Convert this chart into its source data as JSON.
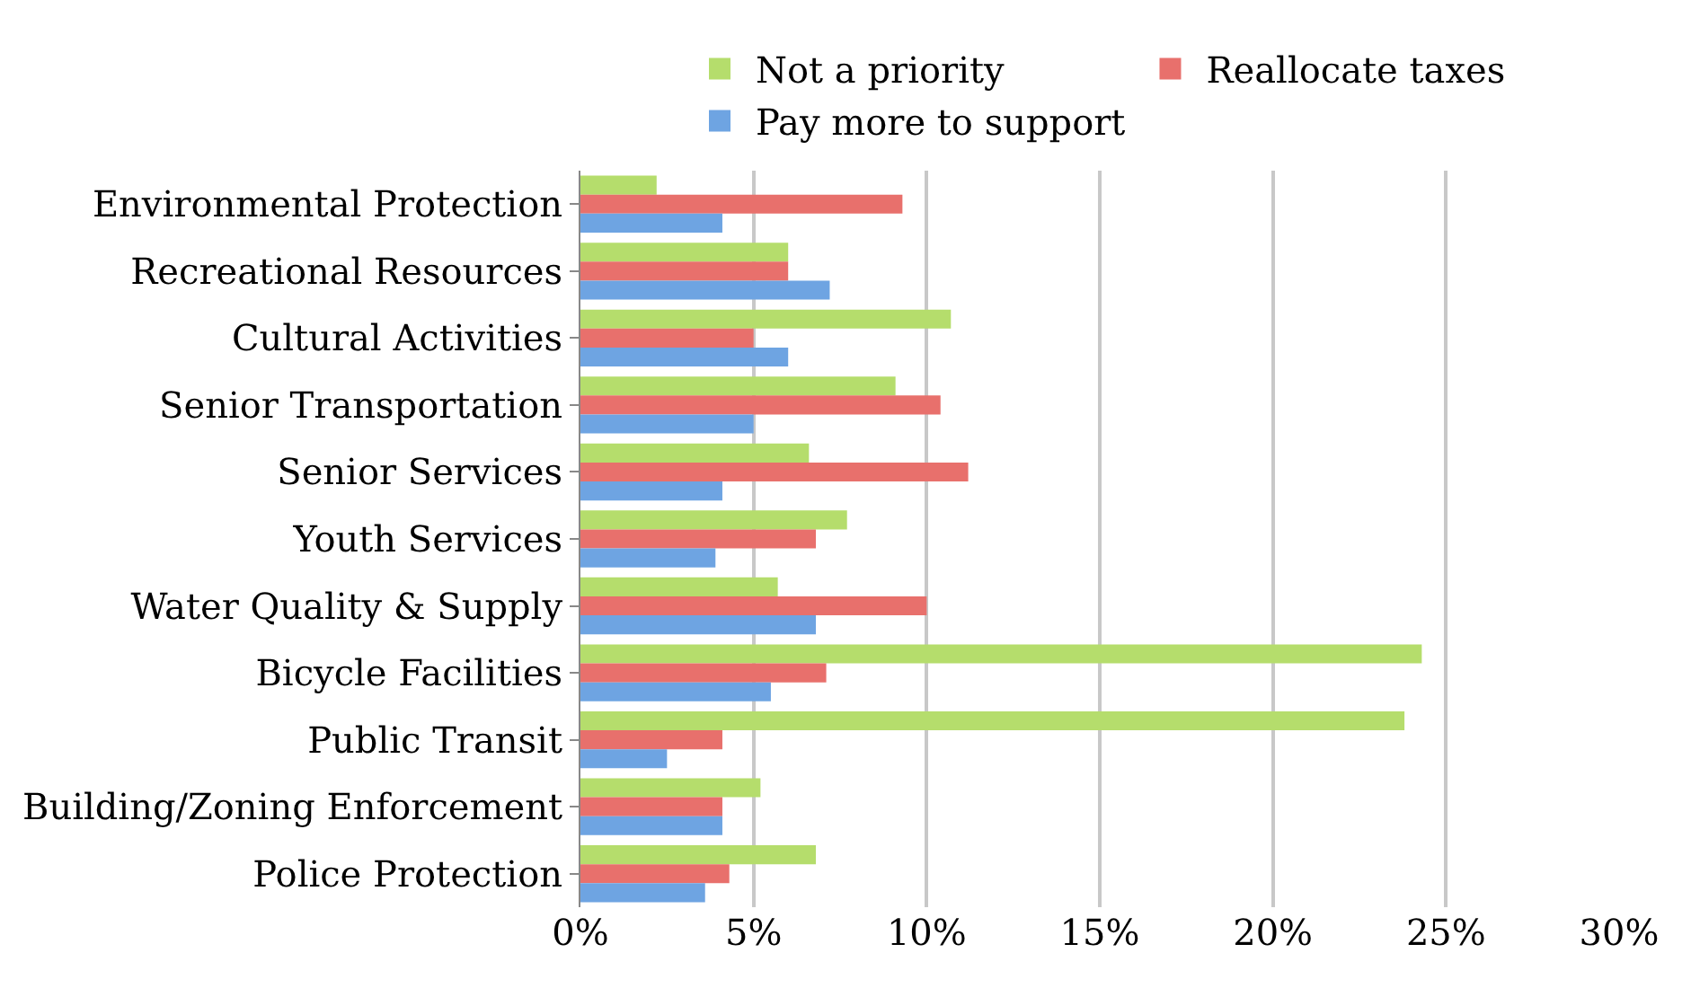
{
  "chart_data": {
    "type": "bar",
    "orientation": "horizontal",
    "categories": [
      "Environmental Protection",
      "Recreational Resources",
      "Cultural Activities",
      "Senior Transportation",
      "Senior Services",
      "Youth Services",
      "Water Quality & Supply",
      "Bicycle Facilities",
      "Public Transit",
      "Building/Zoning Enforcement",
      "Police Protection"
    ],
    "series": [
      {
        "name": "Not a priority",
        "color": "#b5dd6c",
        "values": [
          2.2,
          6.0,
          10.7,
          9.1,
          6.6,
          7.7,
          5.7,
          24.3,
          23.8,
          5.2,
          6.8
        ]
      },
      {
        "name": "Reallocate taxes",
        "color": "#e8706c",
        "values": [
          9.3,
          6.0,
          5.0,
          10.4,
          11.2,
          6.8,
          10.0,
          7.1,
          4.1,
          4.1,
          4.3
        ]
      },
      {
        "name": "Pay more to support",
        "color": "#6ea4e2",
        "values": [
          4.1,
          7.2,
          6.0,
          5.0,
          4.1,
          3.9,
          6.8,
          5.5,
          2.5,
          4.1,
          3.6
        ]
      }
    ],
    "xlim": [
      0,
      30
    ],
    "xticks": [
      {
        "value": 0,
        "label": "0%"
      },
      {
        "value": 5,
        "label": "5%"
      },
      {
        "value": 10,
        "label": "10%"
      },
      {
        "value": 15,
        "label": "15%"
      },
      {
        "value": 20,
        "label": "20%"
      },
      {
        "value": 25,
        "label": "25%"
      },
      {
        "value": 30,
        "label": "30%"
      }
    ],
    "grid": "x",
    "legend": "top"
  }
}
